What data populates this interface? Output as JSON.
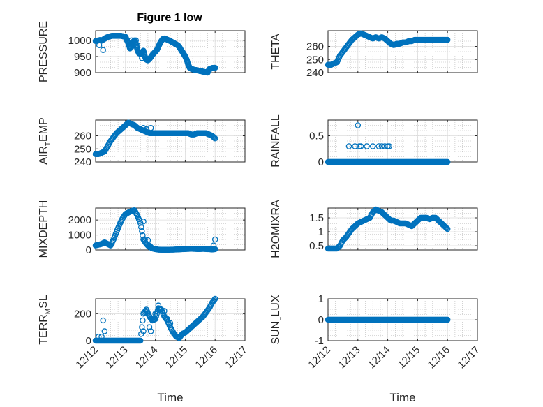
{
  "figure": {
    "title": "Figure 1 low"
  },
  "colors": {
    "marker": "#0072BD",
    "axis": "#262626",
    "grid": "#b4b4b4"
  },
  "chart_data": [
    {
      "type": "scatter",
      "id": "pressure",
      "ylabel": {
        "main": "PRESSURE",
        "sub": "",
        "tail": ""
      },
      "ylim": [
        900,
        1030
      ],
      "yticks": [
        900,
        950,
        1000
      ],
      "x": [
        0,
        0.05,
        0.1,
        0.15,
        0.2,
        0.25,
        0.3,
        0.35,
        0.4,
        0.45,
        0.5,
        0.55,
        0.6,
        0.65,
        0.7,
        0.75,
        0.8,
        0.85,
        0.9,
        0.95,
        1.0,
        1.05,
        1.1,
        1.15,
        1.2,
        1.25,
        1.3,
        1.35,
        1.4,
        1.45,
        1.5,
        1.55,
        1.6,
        1.65,
        1.7,
        1.75,
        1.8,
        1.85,
        1.9,
        1.95,
        2.0,
        2.05,
        2.1,
        2.15,
        2.2,
        2.25,
        2.3,
        2.35,
        2.4,
        2.45,
        2.5,
        2.55,
        2.6,
        2.65,
        2.7,
        2.75,
        2.8,
        2.85,
        2.9,
        2.95,
        3.0,
        3.05,
        3.1,
        3.15,
        3.2,
        3.25,
        3.3,
        3.35,
        3.4,
        3.45,
        3.5,
        3.55,
        3.6,
        3.65,
        3.7,
        3.75,
        3.8,
        3.85,
        3.9,
        3.95,
        4.0
      ],
      "y": [
        998,
        999,
        1000,
        1001,
        999,
        1002,
        1005,
        1008,
        1010,
        1012,
        1013,
        1014,
        1014,
        1014,
        1014,
        1014,
        1014,
        1014,
        1013,
        1012,
        1011,
        1000,
        990,
        975,
        980,
        995,
        1000,
        990,
        970,
        960,
        958,
        962,
        968,
        950,
        940,
        938,
        942,
        948,
        955,
        960,
        965,
        970,
        980,
        990,
        998,
        1004,
        1006,
        1004,
        1002,
        1000,
        998,
        995,
        993,
        990,
        987,
        985,
        980,
        972,
        965,
        958,
        950,
        940,
        925,
        915,
        912,
        910,
        909,
        908,
        907,
        906,
        905,
        904,
        903,
        902,
        901,
        900,
        910,
        912,
        914,
        915,
        915
      ],
      "extra": [
        [
          0.12,
          985
        ],
        [
          0.25,
          970
        ],
        [
          1.2,
          1000
        ],
        [
          1.35,
          1000
        ],
        [
          1.4,
          985
        ],
        [
          1.55,
          945
        ]
      ]
    },
    {
      "type": "scatter",
      "id": "theta",
      "ylabel": {
        "main": "THETA",
        "sub": "",
        "tail": ""
      },
      "ylim": [
        240,
        272
      ],
      "yticks": [
        240,
        250,
        260
      ],
      "x": [
        0,
        0.1,
        0.2,
        0.3,
        0.4,
        0.5,
        0.6,
        0.7,
        0.8,
        0.9,
        1.0,
        1.1,
        1.2,
        1.3,
        1.4,
        1.5,
        1.6,
        1.7,
        1.8,
        1.9,
        2.0,
        2.1,
        2.2,
        2.3,
        2.4,
        2.5,
        2.6,
        2.7,
        2.8,
        2.9,
        3.0,
        3.1,
        3.2,
        3.3,
        3.4,
        3.5,
        3.6,
        3.7,
        3.8,
        3.9,
        4.0
      ],
      "y": [
        246,
        246,
        247,
        248,
        253,
        256,
        259,
        262,
        265,
        267,
        269,
        270,
        269,
        268,
        267,
        266,
        267,
        266,
        267,
        266,
        264,
        262,
        261,
        262,
        262,
        263,
        263,
        264,
        264,
        265,
        265,
        265,
        265,
        265,
        265,
        265,
        265,
        265,
        265,
        265,
        265
      ]
    },
    {
      "type": "scatter",
      "id": "airtemp",
      "ylabel": {
        "main": "AIR",
        "sub": "T",
        "tail": "EMP"
      },
      "ylim": [
        240,
        272
      ],
      "yticks": [
        240,
        250,
        260
      ],
      "x": [
        0,
        0.1,
        0.2,
        0.3,
        0.4,
        0.5,
        0.6,
        0.7,
        0.8,
        0.9,
        1.0,
        1.1,
        1.2,
        1.3,
        1.4,
        1.5,
        1.6,
        1.7,
        1.8,
        1.9,
        2.0,
        2.1,
        2.2,
        2.3,
        2.4,
        2.5,
        2.6,
        2.7,
        2.8,
        2.9,
        3.0,
        3.1,
        3.2,
        3.3,
        3.4,
        3.5,
        3.6,
        3.7,
        3.8,
        3.9,
        4.0
      ],
      "y": [
        246,
        246,
        247,
        248,
        252,
        256,
        259,
        262,
        264,
        266,
        268,
        270,
        269,
        268,
        266,
        265,
        264,
        263,
        262,
        262,
        262,
        262,
        262,
        262,
        262,
        262,
        262,
        262,
        262,
        262,
        262,
        262,
        261,
        261,
        262,
        262,
        262,
        262,
        261,
        260,
        258
      ],
      "extra": [
        [
          1.6,
          266
        ],
        [
          1.7,
          265
        ],
        [
          1.85,
          266
        ]
      ]
    },
    {
      "type": "scatter",
      "id": "rainfall",
      "ylabel": {
        "main": "RAINFALL",
        "sub": "",
        "tail": ""
      },
      "ylim": [
        0,
        0.8
      ],
      "yticks": [
        0,
        0.5
      ],
      "x": [
        0,
        0.1,
        0.2,
        0.3,
        0.4,
        0.5,
        0.6,
        0.7,
        0.8,
        0.9,
        1.0,
        1.1,
        1.2,
        1.3,
        1.4,
        1.5,
        1.6,
        1.7,
        1.8,
        1.9,
        2.0,
        2.1,
        2.2,
        2.3,
        2.4,
        2.5,
        2.6,
        2.7,
        2.8,
        2.9,
        3.0,
        3.1,
        3.2,
        3.3,
        3.4,
        3.5,
        3.6,
        3.7,
        3.8,
        3.9,
        4.0
      ],
      "y": [
        0,
        0,
        0,
        0,
        0,
        0,
        0,
        0,
        0,
        0,
        0,
        0,
        0,
        0,
        0,
        0,
        0,
        0,
        0,
        0,
        0,
        0,
        0,
        0,
        0,
        0,
        0,
        0,
        0,
        0,
        0,
        0,
        0,
        0,
        0,
        0,
        0,
        0,
        0,
        0,
        0
      ],
      "extra": [
        [
          0.7,
          0.3
        ],
        [
          0.9,
          0.3
        ],
        [
          1.0,
          0.7
        ],
        [
          1.05,
          0.3
        ],
        [
          1.1,
          0.3
        ],
        [
          1.3,
          0.3
        ],
        [
          1.5,
          0.3
        ],
        [
          1.7,
          0.3
        ],
        [
          1.8,
          0.3
        ],
        [
          1.9,
          0.3
        ],
        [
          2.0,
          0.3
        ],
        [
          2.05,
          0.3
        ]
      ]
    },
    {
      "type": "scatter",
      "id": "mixdepth",
      "ylabel": {
        "main": "MIXDEPTH",
        "sub": "",
        "tail": ""
      },
      "ylim": [
        0,
        2800
      ],
      "yticks": [
        0,
        1000,
        2000
      ],
      "x": [
        0,
        0.1,
        0.2,
        0.3,
        0.4,
        0.5,
        0.6,
        0.7,
        0.8,
        0.9,
        1.0,
        1.1,
        1.2,
        1.3,
        1.4,
        1.5,
        1.6,
        1.7,
        1.8,
        1.9,
        2.0,
        2.1,
        2.2,
        2.3,
        2.4,
        2.5,
        2.6,
        2.7,
        2.8,
        2.9,
        3.0,
        3.1,
        3.2,
        3.3,
        3.4,
        3.5,
        3.6,
        3.7,
        3.8,
        3.9,
        4.0
      ],
      "y": [
        300,
        350,
        400,
        500,
        400,
        300,
        700,
        1200,
        1700,
        2100,
        2400,
        2500,
        2600,
        2650,
        2300,
        1800,
        700,
        400,
        200,
        100,
        50,
        20,
        10,
        10,
        10,
        15,
        20,
        30,
        40,
        50,
        60,
        70,
        80,
        70,
        60,
        60,
        70,
        60,
        50,
        30,
        50
      ],
      "extra": [
        [
          1.6,
          1900
        ],
        [
          1.65,
          700
        ],
        [
          1.75,
          650
        ],
        [
          1.8,
          300
        ],
        [
          1.85,
          200
        ],
        [
          3.95,
          300
        ],
        [
          4.0,
          700
        ]
      ]
    },
    {
      "type": "scatter",
      "id": "h2omixra",
      "ylabel": {
        "main": "H2OMIXRA",
        "sub": "",
        "tail": ""
      },
      "ylim": [
        0.35,
        1.85
      ],
      "yticks": [
        0.5,
        1,
        1.5
      ],
      "x": [
        0,
        0.1,
        0.2,
        0.3,
        0.4,
        0.5,
        0.6,
        0.7,
        0.8,
        0.9,
        1.0,
        1.1,
        1.2,
        1.3,
        1.4,
        1.5,
        1.6,
        1.7,
        1.8,
        1.9,
        2.0,
        2.1,
        2.2,
        2.3,
        2.4,
        2.5,
        2.6,
        2.7,
        2.8,
        2.9,
        3.0,
        3.1,
        3.2,
        3.3,
        3.4,
        3.5,
        3.6,
        3.7,
        3.8,
        3.9,
        4.0
      ],
      "y": [
        0.4,
        0.4,
        0.4,
        0.4,
        0.5,
        0.7,
        0.8,
        0.95,
        1.1,
        1.2,
        1.3,
        1.35,
        1.4,
        1.45,
        1.5,
        1.7,
        1.8,
        1.75,
        1.7,
        1.6,
        1.5,
        1.4,
        1.4,
        1.35,
        1.3,
        1.3,
        1.3,
        1.25,
        1.2,
        1.3,
        1.4,
        1.5,
        1.5,
        1.5,
        1.45,
        1.5,
        1.5,
        1.4,
        1.3,
        1.2,
        1.1
      ]
    },
    {
      "type": "scatter",
      "id": "terrmsl",
      "ylabel": {
        "main": "TERR",
        "sub": "M",
        "tail": "SL"
      },
      "ylim": [
        0,
        310
      ],
      "yticks": [
        0,
        200
      ],
      "x": [
        0,
        0.1,
        0.2,
        0.3,
        0.4,
        0.5,
        0.6,
        0.7,
        0.8,
        0.9,
        1.0,
        1.1,
        1.2,
        1.3,
        1.4,
        1.5,
        1.6,
        1.7,
        1.8,
        1.9,
        2.0,
        2.1,
        2.2,
        2.3,
        2.4,
        2.5,
        2.6,
        2.7,
        2.8,
        2.9,
        3.0,
        3.1,
        3.2,
        3.3,
        3.4,
        3.5,
        3.6,
        3.7,
        3.8,
        3.9,
        4.0
      ],
      "y": [
        0,
        0,
        0,
        0,
        0,
        0,
        0,
        0,
        0,
        0,
        0,
        0,
        0,
        0,
        0,
        0,
        200,
        230,
        180,
        150,
        160,
        240,
        230,
        180,
        150,
        100,
        60,
        30,
        20,
        50,
        60,
        80,
        100,
        120,
        140,
        160,
        180,
        210,
        240,
        280,
        310
      ],
      "extra": [
        [
          0.1,
          30
        ],
        [
          0.2,
          30
        ],
        [
          0.25,
          150
        ],
        [
          0.3,
          70
        ],
        [
          1.6,
          70
        ],
        [
          1.8,
          100
        ],
        [
          1.85,
          70
        ],
        [
          2.0,
          200
        ],
        [
          2.1,
          260
        ],
        [
          2.3,
          220
        ],
        [
          2.4,
          160
        ],
        [
          2.5,
          130
        ]
      ]
    },
    {
      "type": "scatter",
      "id": "sunflux",
      "ylabel": {
        "main": "SUN",
        "sub": "F",
        "tail": "LUX"
      },
      "ylim": [
        -1,
        1
      ],
      "yticks": [
        -1,
        0,
        1
      ],
      "x": [
        0,
        0.1,
        0.2,
        0.3,
        0.4,
        0.5,
        0.6,
        0.7,
        0.8,
        0.9,
        1.0,
        1.1,
        1.2,
        1.3,
        1.4,
        1.5,
        1.6,
        1.7,
        1.8,
        1.9,
        2.0,
        2.1,
        2.2,
        2.3,
        2.4,
        2.5,
        2.6,
        2.7,
        2.8,
        2.9,
        3.0,
        3.1,
        3.2,
        3.3,
        3.4,
        3.5,
        3.6,
        3.7,
        3.8,
        3.9,
        4.0
      ],
      "y": [
        0,
        0,
        0,
        0,
        0,
        0,
        0,
        0,
        0,
        0,
        0,
        0,
        0,
        0,
        0,
        0,
        0,
        0,
        0,
        0,
        0,
        0,
        0,
        0,
        0,
        0,
        0,
        0,
        0,
        0,
        0,
        0,
        0,
        0,
        0,
        0,
        0,
        0,
        0,
        0,
        0
      ]
    }
  ],
  "xaxis": {
    "xlim": [
      0,
      5
    ],
    "ticks": [
      0,
      1,
      2,
      3,
      4,
      5
    ],
    "ticklabels": [
      "12/12",
      "12/13",
      "12/14",
      "12/15",
      "12/16",
      "12/17"
    ],
    "label": "Time"
  }
}
